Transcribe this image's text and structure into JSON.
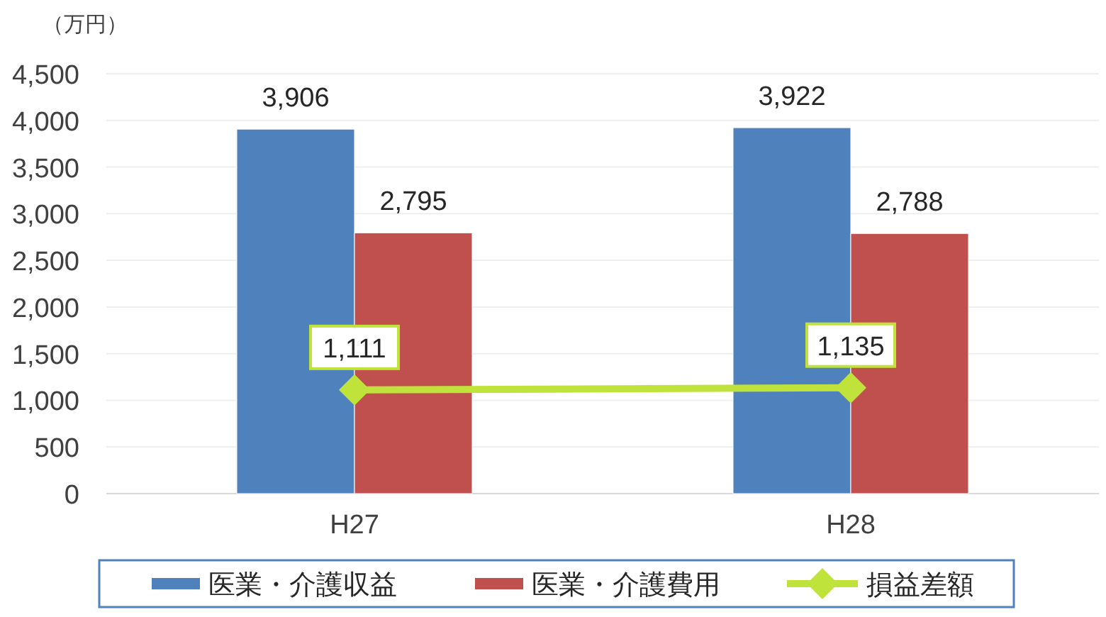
{
  "chart_data": {
    "type": "bar",
    "ylabel": "（万円）",
    "categories": [
      "H27",
      "H28"
    ],
    "series": [
      {
        "name": "医業・介護収益",
        "color": "#4f81bd",
        "values": [
          3906,
          3922
        ],
        "value_labels": [
          "3,906",
          "3,922"
        ]
      },
      {
        "name": "医業・介護費用",
        "color": "#c0504d",
        "values": [
          2795,
          2788
        ],
        "value_labels": [
          "2,795",
          "2,788"
        ]
      },
      {
        "name": "損益差額",
        "type": "line",
        "color": "#bfe33a",
        "marker": "diamond",
        "values": [
          1111,
          1135
        ],
        "value_labels": [
          "1,111",
          "1,135"
        ]
      }
    ],
    "ylim": [
      0,
      4500
    ],
    "yticks": [
      {
        "value": 0,
        "label": "0"
      },
      {
        "value": 500,
        "label": "500"
      },
      {
        "value": 1000,
        "label": "1,000"
      },
      {
        "value": 1500,
        "label": "1,500"
      },
      {
        "value": 2000,
        "label": "2,000"
      },
      {
        "value": 2500,
        "label": "2,500"
      },
      {
        "value": 3000,
        "label": "3,000"
      },
      {
        "value": 3500,
        "label": "3,500"
      },
      {
        "value": 4000,
        "label": "4,000"
      },
      {
        "value": 4500,
        "label": "4,500"
      }
    ],
    "grid": "y",
    "legend": "bottom"
  }
}
